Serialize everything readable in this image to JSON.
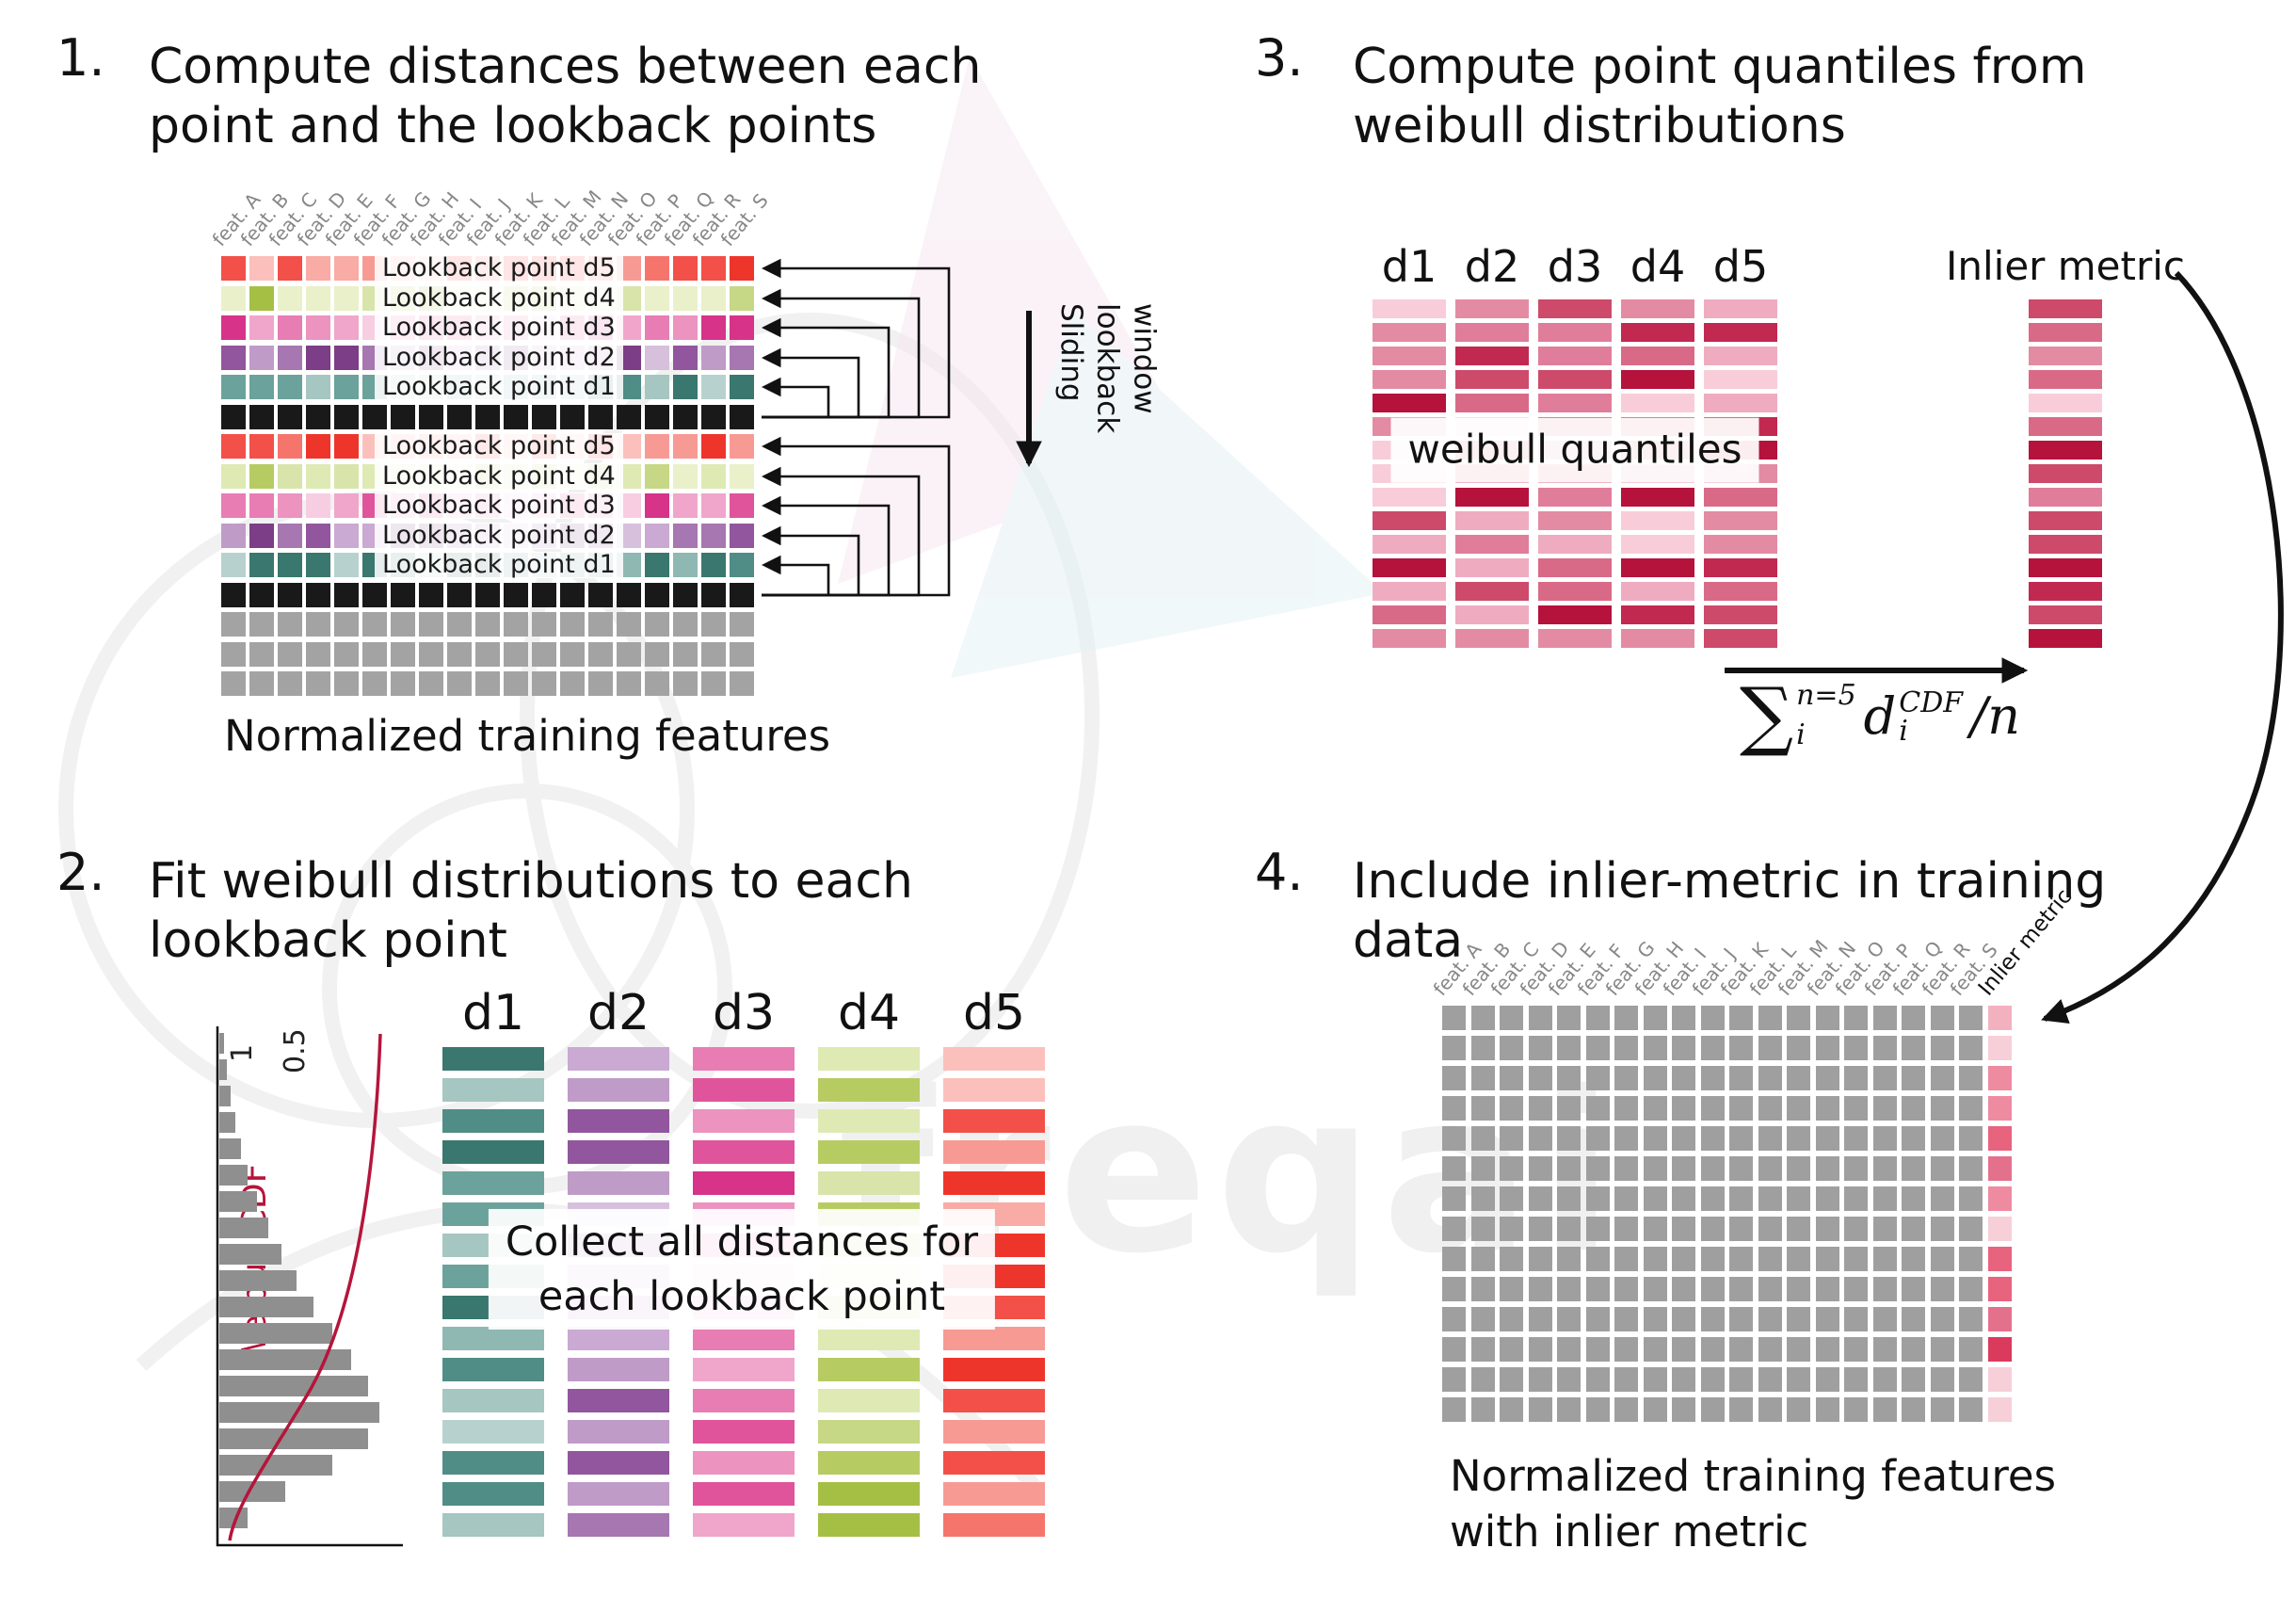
{
  "watermark": {
    "text": "freqai"
  },
  "features": [
    "feat. A",
    "feat. B",
    "feat. C",
    "feat. D",
    "feat. E",
    "feat. F",
    "feat. G",
    "feat. H",
    "feat. I",
    "feat. J",
    "feat. K",
    "feat. L",
    "feat. M",
    "feat. N",
    "feat. O",
    "feat. P",
    "feat. Q",
    "feat. R",
    "feat. S"
  ],
  "grids": {
    "p1": {
      "rows": 15,
      "cols": 19
    },
    "p2": {
      "bars": 16
    },
    "p3": {
      "bars": 15
    },
    "p4": {
      "rows": 14,
      "cols": 20
    }
  },
  "panel1": {
    "number": "1.",
    "title_line1": "Compute distances between each",
    "title_line2": "point and the lookback points",
    "caption": "Normalized training features",
    "sliding_window": [
      "Sliding",
      "lookback",
      "window"
    ],
    "rows": [
      {
        "type": "d5",
        "label": "Lookback point d5"
      },
      {
        "type": "d4",
        "label": "Lookback point d4"
      },
      {
        "type": "d3",
        "label": "Lookback point d3"
      },
      {
        "type": "d2",
        "label": "Lookback point d2"
      },
      {
        "type": "d1",
        "label": "Lookback point d1"
      },
      {
        "type": "black"
      },
      {
        "type": "d5",
        "label": "Lookback point d5"
      },
      {
        "type": "d4",
        "label": "Lookback point d4"
      },
      {
        "type": "d3",
        "label": "Lookback point d3"
      },
      {
        "type": "d2",
        "label": "Lookback point d2"
      },
      {
        "type": "d1",
        "label": "Lookback point d1"
      },
      {
        "type": "black"
      },
      {
        "type": "gray"
      },
      {
        "type": "gray"
      },
      {
        "type": "gray"
      }
    ]
  },
  "panel2": {
    "number": "2.",
    "title_line1": "Fit weibull distributions to each",
    "title_line2": "lookback point",
    "tick_1": "1",
    "tick_05": "0.5",
    "cdf_label": "Weibull CDF",
    "columns": [
      "d1",
      "d2",
      "d3",
      "d4",
      "d5"
    ],
    "overlay_line1": "Collect all distances for",
    "overlay_line2": "each lookback point",
    "hist_lengths": [
      5,
      8,
      12,
      17,
      23,
      30,
      40,
      52,
      66,
      82,
      100,
      120,
      140,
      158,
      170,
      158,
      120,
      70,
      30
    ]
  },
  "panel3": {
    "number": "3.",
    "title_line1": "Compute point quantiles from",
    "title_line2": "weibull distributions",
    "columns": [
      "d1",
      "d2",
      "d3",
      "d4",
      "d5"
    ],
    "overlay": "weibull quantiles",
    "inlier_label": "Inlier metric",
    "formula": {
      "sum": "∑",
      "sum_sup": "n=5",
      "sum_sub": "i",
      "var": "d",
      "var_sup": "CDF",
      "var_sub": "i",
      "tail": "/n"
    }
  },
  "panel4": {
    "number": "4.",
    "title_line1": "Include inlier-metric in training",
    "title_line2": "data",
    "inlier_col_label": "Inlier metric",
    "caption_line1": "Normalized training features",
    "caption_line2": "with inlier metric"
  },
  "colors": {
    "d1": [
      "#4f8d86",
      "#6ba29b",
      "#8fb8b2",
      "#b7d2ce",
      "#39776f",
      "#a5c6c1"
    ],
    "d2": [
      "#91569d",
      "#a677b1",
      "#bf9bc8",
      "#d7c0dc",
      "#7b3e87",
      "#caa9d2"
    ],
    "d3": [
      "#e0549b",
      "#e87db4",
      "#f0a6ca",
      "#f7cde2",
      "#d63389",
      "#ec93bf"
    ],
    "d4": [
      "#b6cc62",
      "#c6d786",
      "#d9e4aa",
      "#eaf0ca",
      "#a5bf45",
      "#dfe9b4"
    ],
    "d5": [
      "#f25048",
      "#f5756d",
      "#f89a94",
      "#fbc0bb",
      "#ee352b",
      "#f9aba5"
    ],
    "black": "#191919",
    "gray": "#a3a3a3",
    "gray4": "#9f9f9f",
    "quantile_reds": [
      "#c22950",
      "#cd4a6b",
      "#d96a87",
      "#e48ba4",
      "#efacc0",
      "#f8cdd9",
      "#b5123c",
      "#e07d9a"
    ],
    "inlier_reds": [
      "#e8637e",
      "#ee8ba0",
      "#f3b1c0",
      "#da3b5c",
      "#f7cfd8",
      "#e4718b"
    ],
    "cdf_curve": "#b5153b",
    "hist_bar": "#8f8f8f",
    "arrow": "#111111"
  }
}
